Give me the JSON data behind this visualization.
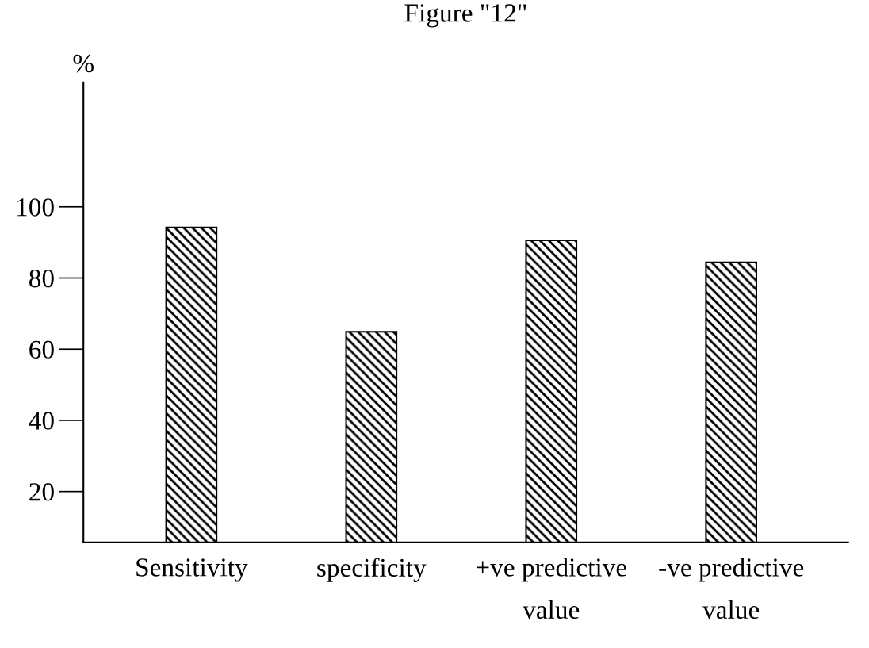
{
  "chart_data": {
    "type": "bar",
    "title": "Figure \"12\"",
    "ylabel": "%",
    "categories": [
      "Sensitivity",
      "specificity",
      "+ve predictive\nvalue",
      "-ve predictive\nvalue"
    ],
    "values": [
      94.2,
      64.9,
      90.6,
      84.4
    ],
    "color": "#000000",
    "ylim": [
      5.7,
      135
    ],
    "yticks": [
      20,
      40,
      60,
      80,
      100
    ],
    "grid": false
  }
}
